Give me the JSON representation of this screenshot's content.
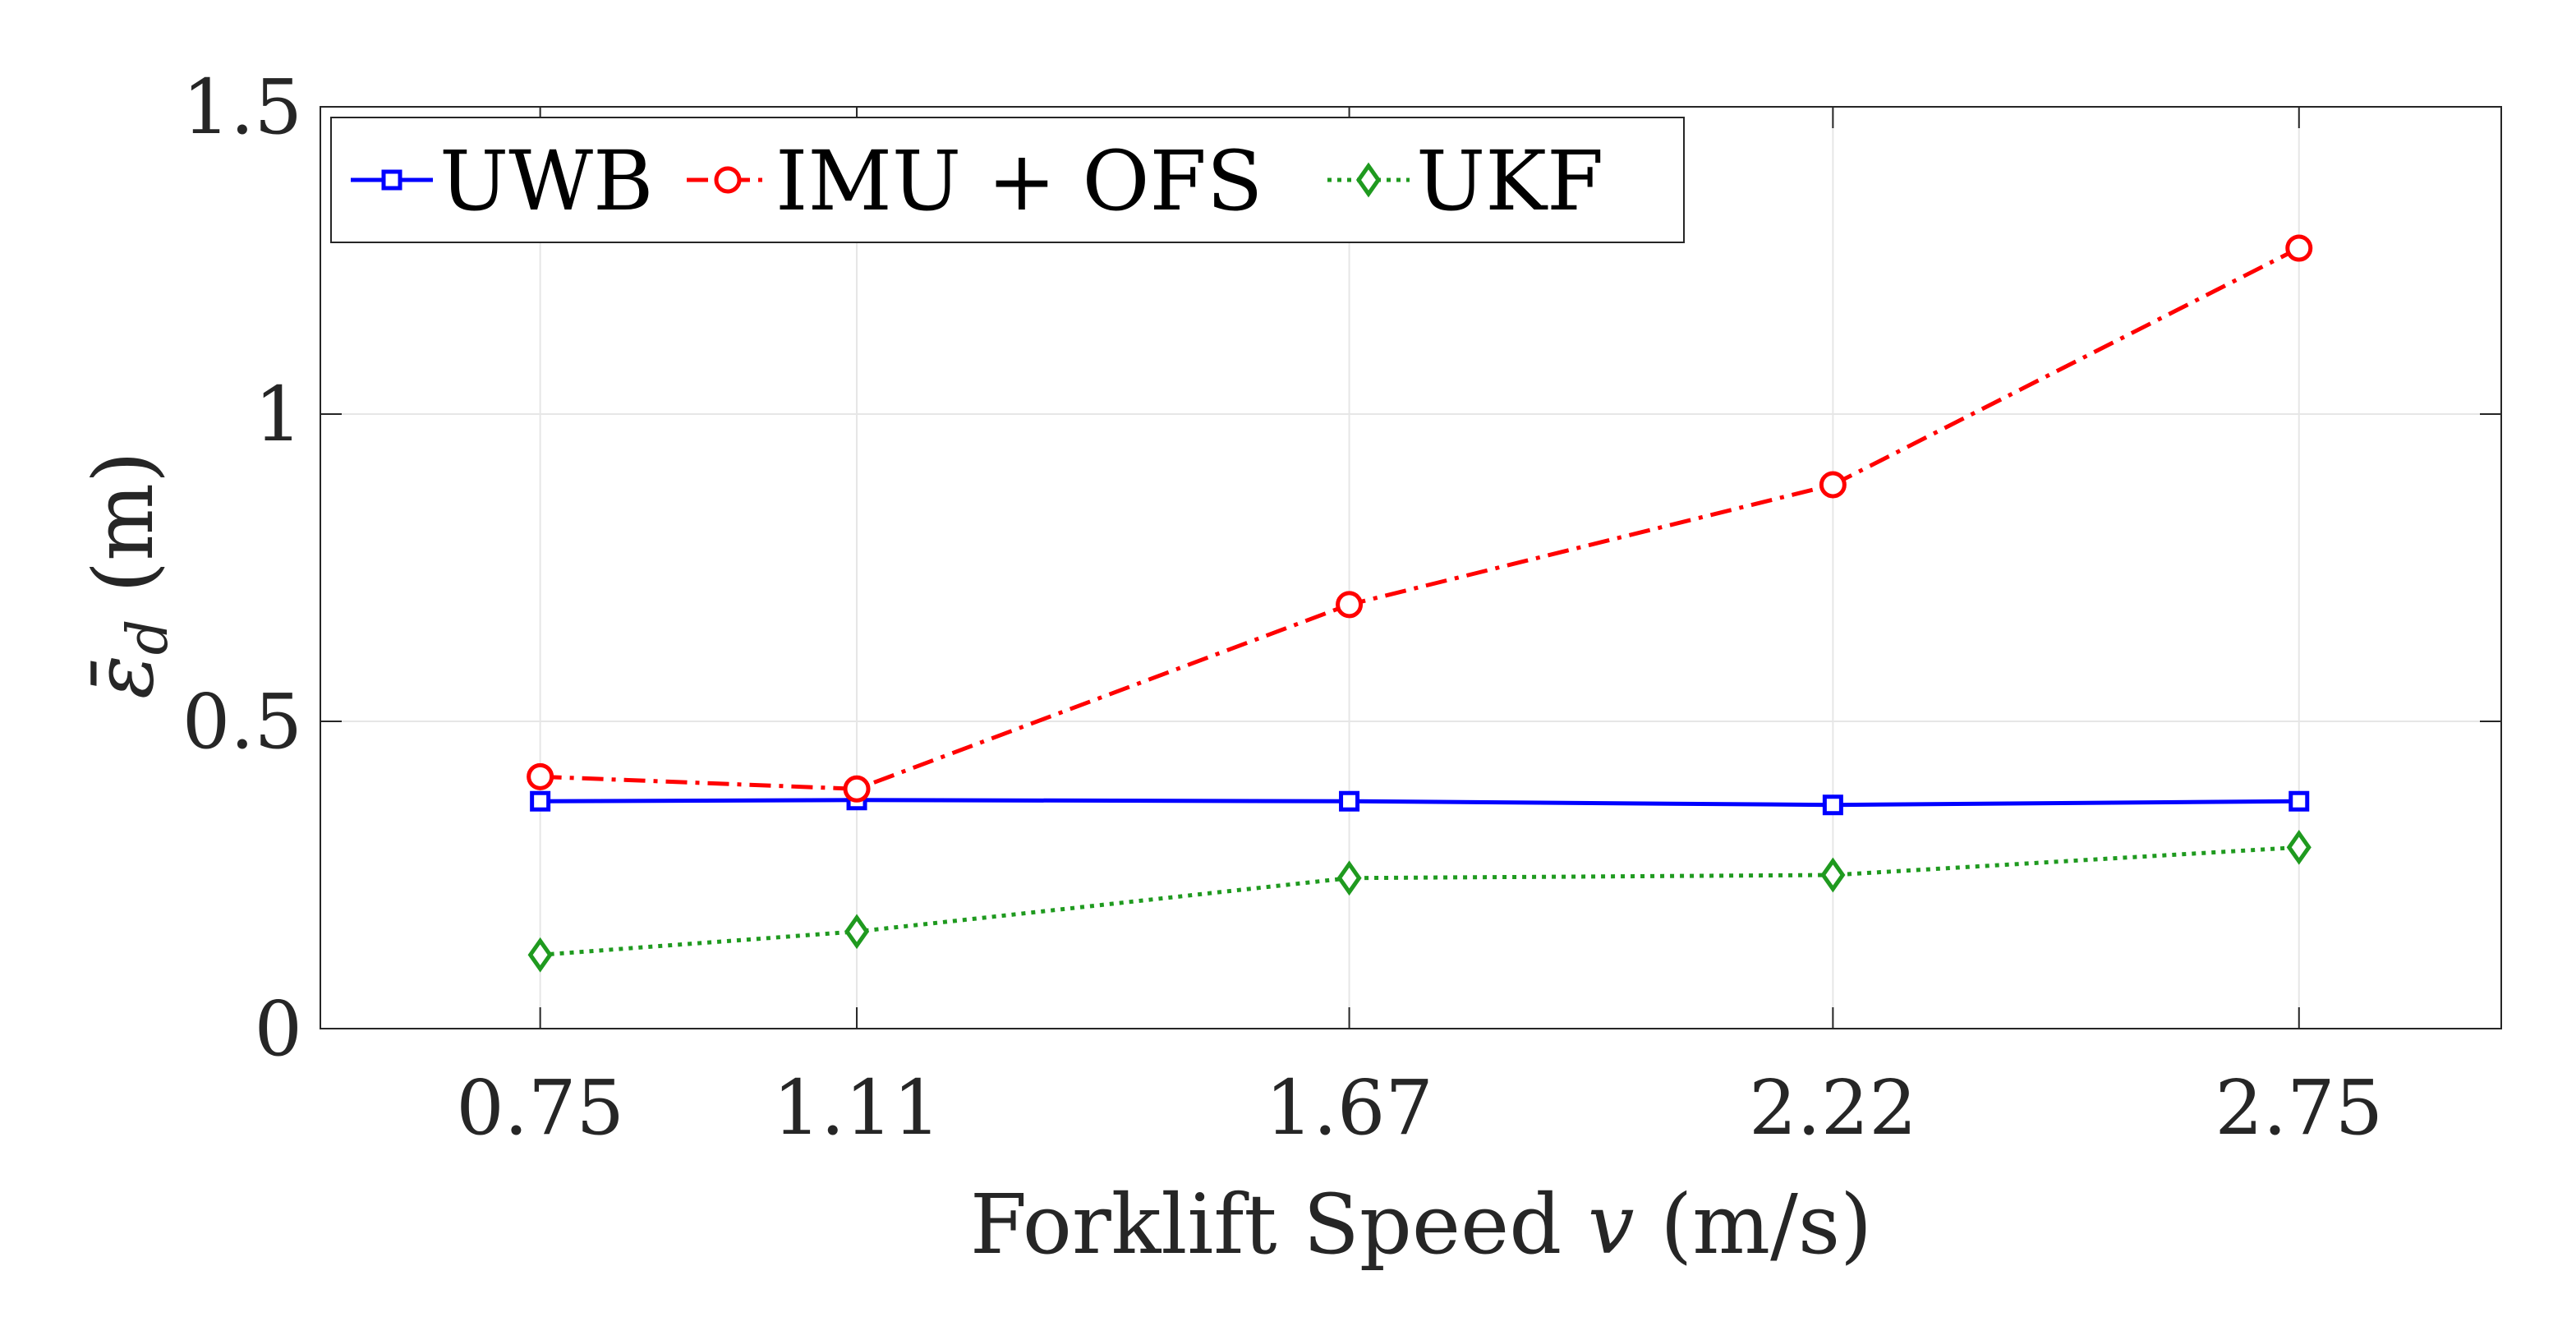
{
  "chart_data": {
    "type": "line",
    "x": [
      0.75,
      1.11,
      1.67,
      2.22,
      2.75
    ],
    "x_tick_labels": [
      "0.75",
      "1.11",
      "1.67",
      "2.22",
      "2.75"
    ],
    "xlim": [
      0.5,
      2.98
    ],
    "ylim": [
      0,
      1.5
    ],
    "y_ticks": [
      0,
      0.5,
      1,
      1.5
    ],
    "y_tick_labels": [
      "0",
      "0.5",
      "1",
      "1.5"
    ],
    "xlabel": "Forklift Speed v (m/s)",
    "xlabel_parts": {
      "pre": "Forklift Speed ",
      "var": "v",
      "post": " (m/s)"
    },
    "ylabel": "ε̄d (m)",
    "ylabel_parts": {
      "sym": "ε̄",
      "sub": "d",
      "post": " (m)"
    },
    "grid": true,
    "legend_position": "top-left",
    "legend_orientation": "horizontal",
    "series": [
      {
        "name": "UWB",
        "color": "#0000ff",
        "marker": "square",
        "line_style": "solid",
        "values": [
          0.37,
          0.372,
          0.37,
          0.364,
          0.37
        ]
      },
      {
        "name": "IMU + OFS",
        "color": "#ff0000",
        "marker": "circle",
        "line_style": "dashdot",
        "values": [
          0.41,
          0.39,
          0.69,
          0.885,
          1.27
        ]
      },
      {
        "name": "UKF",
        "color": "#1f9a1f",
        "marker": "diamond",
        "line_style": "dotted",
        "values": [
          0.12,
          0.158,
          0.245,
          0.25,
          0.295
        ]
      }
    ]
  }
}
